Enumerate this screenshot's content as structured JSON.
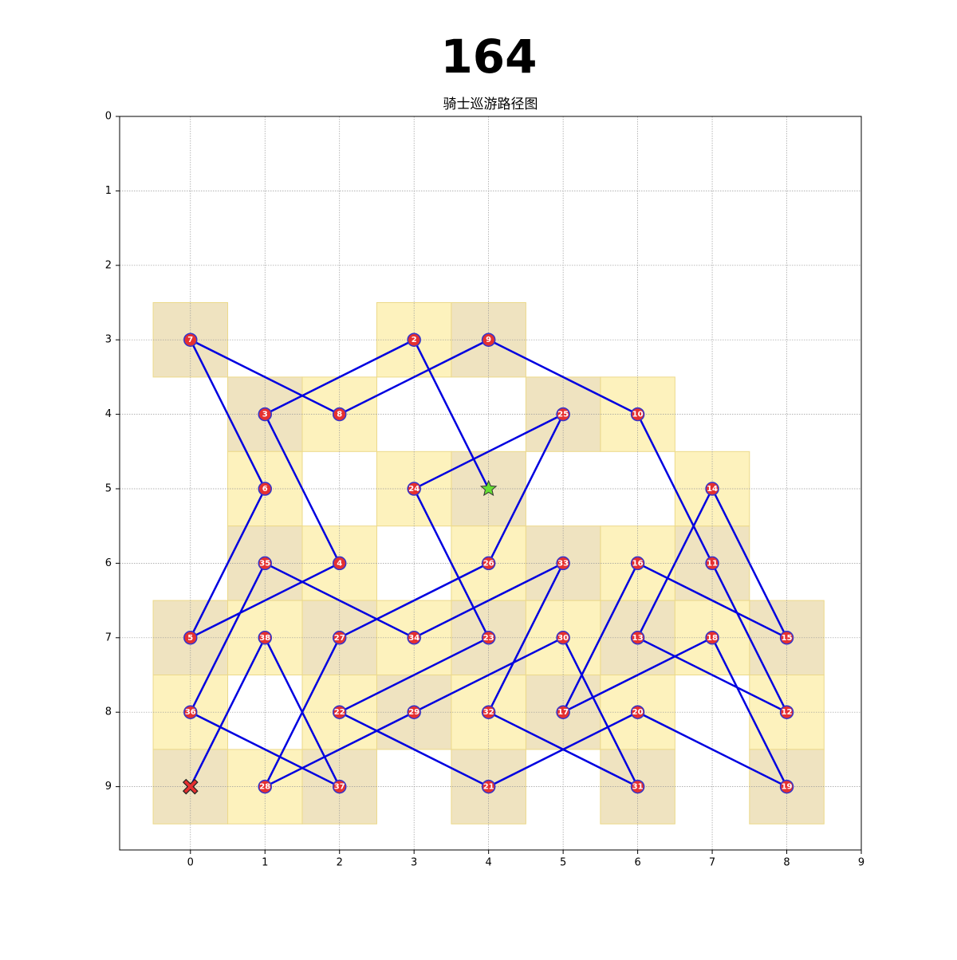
{
  "title": "164",
  "subtitle": "骑士巡游路径图",
  "board": {
    "xlim": [
      -0.95,
      9
    ],
    "ylim": [
      9.85,
      0
    ],
    "xticks": [
      0,
      1,
      2,
      3,
      4,
      5,
      6,
      7,
      8,
      9
    ],
    "yticks": [
      0,
      1,
      2,
      3,
      4,
      5,
      6,
      7,
      8,
      9
    ],
    "grid": true,
    "odd_cell_color": "#efe3c0",
    "even_cell_color": "#fdf2bd",
    "line_color": "#0000e0",
    "node_color": "#e53030",
    "start_color": "#66dd33",
    "end_color": "#e53030"
  },
  "path": [
    {
      "x": 4,
      "y": 5
    },
    {
      "x": 3,
      "y": 3,
      "label": 2
    },
    {
      "x": 1,
      "y": 4,
      "label": 3
    },
    {
      "x": 2,
      "y": 6,
      "label": 4
    },
    {
      "x": 0,
      "y": 7,
      "label": 5
    },
    {
      "x": 1,
      "y": 5,
      "label": 6
    },
    {
      "x": 0,
      "y": 3,
      "label": 7
    },
    {
      "x": 2,
      "y": 4,
      "label": 8
    },
    {
      "x": 4,
      "y": 3,
      "label": 9
    },
    {
      "x": 6,
      "y": 4,
      "label": 10
    },
    {
      "x": 7,
      "y": 6,
      "label": 11
    },
    {
      "x": 8,
      "y": 8,
      "label": 12
    },
    {
      "x": 6,
      "y": 7,
      "label": 13
    },
    {
      "x": 7,
      "y": 5,
      "label": 14
    },
    {
      "x": 8,
      "y": 7,
      "label": 15
    },
    {
      "x": 6,
      "y": 6,
      "label": 16
    },
    {
      "x": 5,
      "y": 8,
      "label": 17
    },
    {
      "x": 7,
      "y": 7,
      "label": 18
    },
    {
      "x": 8,
      "y": 9,
      "label": 19
    },
    {
      "x": 6,
      "y": 8,
      "label": 20
    },
    {
      "x": 4,
      "y": 9,
      "label": 21
    },
    {
      "x": 2,
      "y": 8,
      "label": 22
    },
    {
      "x": 4,
      "y": 7,
      "label": 23
    },
    {
      "x": 3,
      "y": 5,
      "label": 24
    },
    {
      "x": 5,
      "y": 4,
      "label": 25
    },
    {
      "x": 4,
      "y": 6,
      "label": 26
    },
    {
      "x": 2,
      "y": 7,
      "label": 27
    },
    {
      "x": 1,
      "y": 9,
      "label": 28
    },
    {
      "x": 3,
      "y": 8,
      "label": 29
    },
    {
      "x": 5,
      "y": 7,
      "label": 30
    },
    {
      "x": 6,
      "y": 9,
      "label": 31
    },
    {
      "x": 4,
      "y": 8,
      "label": 32
    },
    {
      "x": 5,
      "y": 6,
      "label": 33
    },
    {
      "x": 3,
      "y": 7,
      "label": 34
    },
    {
      "x": 1,
      "y": 6,
      "label": 35
    },
    {
      "x": 0,
      "y": 8,
      "label": 36
    },
    {
      "x": 2,
      "y": 9,
      "label": 37
    },
    {
      "x": 1,
      "y": 7,
      "label": 38
    },
    {
      "x": 0,
      "y": 9
    }
  ]
}
